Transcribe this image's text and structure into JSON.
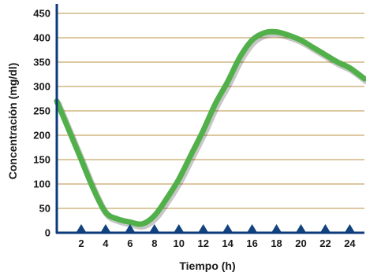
{
  "chart_data": {
    "type": "line",
    "title": "",
    "xlabel": "Tiempo (h)",
    "ylabel": "Concentración (mg/dl)",
    "xlim": [
      0,
      25.2
    ],
    "ylim": [
      0,
      450
    ],
    "x_ticks": [
      "2",
      "4",
      "6",
      "8",
      "10",
      "12",
      "14",
      "16",
      "18",
      "20",
      "22",
      "24"
    ],
    "y_ticks": [
      "0",
      "50",
      "100",
      "150",
      "200",
      "250",
      "300",
      "350",
      "400",
      "450"
    ],
    "grid": "horizontal",
    "colors": {
      "line": "#52b04a",
      "grid": "#c8a96a",
      "axis": "#0d3a7a",
      "marker": "#13437f"
    },
    "markers": {
      "shape": "triangle",
      "x": [
        2,
        4,
        6,
        8,
        10,
        12,
        14,
        16,
        18,
        20,
        22,
        24
      ],
      "y": 0
    },
    "series": [
      {
        "x": [
          0,
          1,
          2,
          3,
          4,
          5,
          6,
          7,
          8,
          9,
          10,
          11,
          12,
          13,
          14,
          15,
          16,
          17,
          18,
          19,
          20,
          21,
          22,
          23,
          24,
          25.2
        ],
        "values": [
          270,
          210,
          150,
          90,
          42,
          28,
          22,
          18,
          35,
          70,
          110,
          160,
          210,
          265,
          310,
          360,
          395,
          410,
          412,
          405,
          395,
          380,
          365,
          350,
          338,
          316
        ]
      }
    ]
  }
}
